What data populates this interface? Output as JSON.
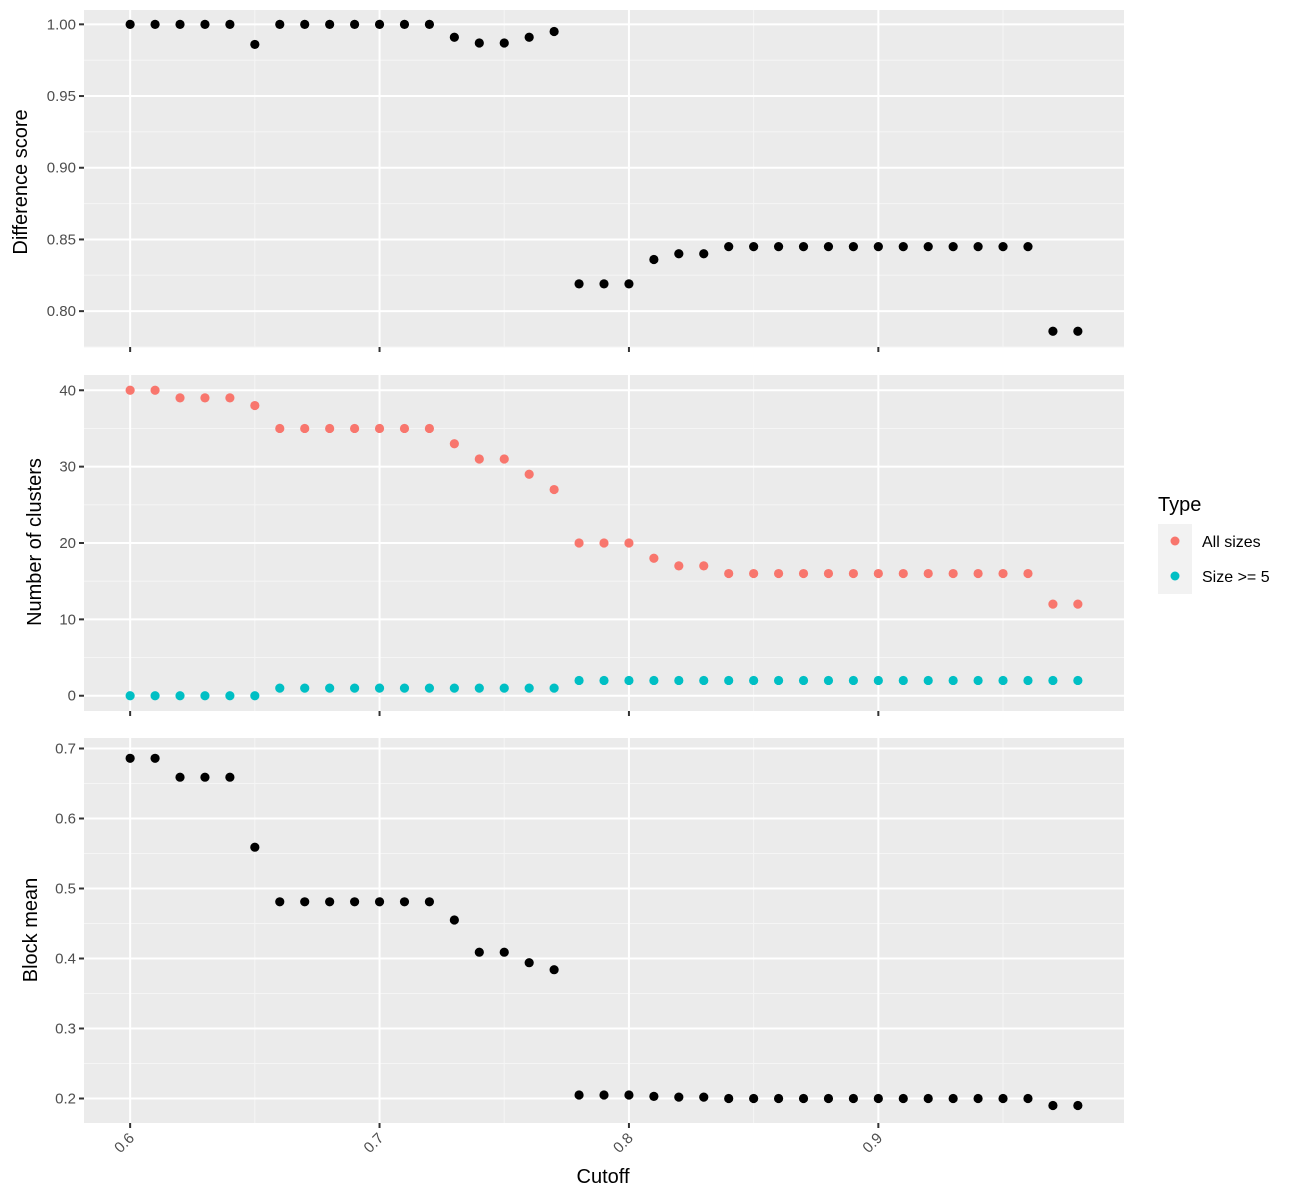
{
  "chart_data": [
    {
      "type": "scatter",
      "panel": "top",
      "ylabel": "Difference score",
      "ylim": [
        0.775,
        1.01
      ],
      "y_ticks": [
        "0.80",
        "0.85",
        "0.90",
        "0.95",
        "1.00"
      ],
      "series": [
        {
          "color": "#000000",
          "x": [
            0.6,
            0.61,
            0.62,
            0.63,
            0.64,
            0.65,
            0.66,
            0.67,
            0.68,
            0.69,
            0.7,
            0.71,
            0.72,
            0.73,
            0.74,
            0.75,
            0.76,
            0.77,
            0.78,
            0.79,
            0.8,
            0.81,
            0.82,
            0.83,
            0.84,
            0.85,
            0.86,
            0.87,
            0.88,
            0.89,
            0.9,
            0.91,
            0.92,
            0.93,
            0.94,
            0.95,
            0.96,
            0.97,
            0.98
          ],
          "y": [
            1.0,
            1.0,
            1.0,
            1.0,
            1.0,
            0.986,
            1.0,
            1.0,
            1.0,
            1.0,
            1.0,
            1.0,
            1.0,
            0.991,
            0.987,
            0.987,
            0.991,
            0.995,
            0.819,
            0.819,
            0.819,
            0.836,
            0.84,
            0.84,
            0.845,
            0.845,
            0.845,
            0.845,
            0.845,
            0.845,
            0.845,
            0.845,
            0.845,
            0.845,
            0.845,
            0.845,
            0.845,
            0.786,
            0.786
          ]
        }
      ]
    },
    {
      "type": "scatter",
      "panel": "middle",
      "ylabel": "Number of clusters",
      "ylim": [
        -2,
        42
      ],
      "y_ticks": [
        "0",
        "10",
        "20",
        "30",
        "40"
      ],
      "series": [
        {
          "name": "All sizes",
          "color": "#F8766D",
          "x": [
            0.6,
            0.61,
            0.62,
            0.63,
            0.64,
            0.65,
            0.66,
            0.67,
            0.68,
            0.69,
            0.7,
            0.71,
            0.72,
            0.73,
            0.74,
            0.75,
            0.76,
            0.77,
            0.78,
            0.79,
            0.8,
            0.81,
            0.82,
            0.83,
            0.84,
            0.85,
            0.86,
            0.87,
            0.88,
            0.89,
            0.9,
            0.91,
            0.92,
            0.93,
            0.94,
            0.95,
            0.96,
            0.97,
            0.98
          ],
          "y": [
            40,
            40,
            39,
            39,
            39,
            38,
            35,
            35,
            35,
            35,
            35,
            35,
            35,
            33,
            31,
            31,
            29,
            27,
            20,
            20,
            20,
            18,
            17,
            17,
            16,
            16,
            16,
            16,
            16,
            16,
            16,
            16,
            16,
            16,
            16,
            16,
            16,
            12,
            12
          ]
        },
        {
          "name": "Size >= 5",
          "color": "#00BFC4",
          "x": [
            0.6,
            0.61,
            0.62,
            0.63,
            0.64,
            0.65,
            0.66,
            0.67,
            0.68,
            0.69,
            0.7,
            0.71,
            0.72,
            0.73,
            0.74,
            0.75,
            0.76,
            0.77,
            0.78,
            0.79,
            0.8,
            0.81,
            0.82,
            0.83,
            0.84,
            0.85,
            0.86,
            0.87,
            0.88,
            0.89,
            0.9,
            0.91,
            0.92,
            0.93,
            0.94,
            0.95,
            0.96,
            0.97,
            0.98
          ],
          "y": [
            0,
            0,
            0,
            0,
            0,
            0,
            1,
            1,
            1,
            1,
            1,
            1,
            1,
            1,
            1,
            1,
            1,
            1,
            2,
            2,
            2,
            2,
            2,
            2,
            2,
            2,
            2,
            2,
            2,
            2,
            2,
            2,
            2,
            2,
            2,
            2,
            2,
            2,
            2
          ]
        }
      ]
    },
    {
      "type": "scatter",
      "panel": "bottom",
      "ylabel": "Block mean",
      "ylim": [
        0.165,
        0.715
      ],
      "y_ticks": [
        "0.2",
        "0.3",
        "0.4",
        "0.5",
        "0.6",
        "0.7"
      ],
      "series": [
        {
          "color": "#000000",
          "x": [
            0.6,
            0.61,
            0.62,
            0.63,
            0.64,
            0.65,
            0.66,
            0.67,
            0.68,
            0.69,
            0.7,
            0.71,
            0.72,
            0.73,
            0.74,
            0.75,
            0.76,
            0.77,
            0.78,
            0.79,
            0.8,
            0.81,
            0.82,
            0.83,
            0.84,
            0.85,
            0.86,
            0.87,
            0.88,
            0.89,
            0.9,
            0.91,
            0.92,
            0.93,
            0.94,
            0.95,
            0.96,
            0.97,
            0.98
          ],
          "y": [
            0.686,
            0.686,
            0.659,
            0.659,
            0.659,
            0.559,
            0.481,
            0.481,
            0.481,
            0.481,
            0.481,
            0.481,
            0.481,
            0.455,
            0.409,
            0.409,
            0.394,
            0.384,
            0.205,
            0.205,
            0.205,
            0.203,
            0.202,
            0.202,
            0.2,
            0.2,
            0.2,
            0.2,
            0.2,
            0.2,
            0.2,
            0.2,
            0.2,
            0.2,
            0.2,
            0.2,
            0.2,
            0.19,
            0.19
          ]
        }
      ]
    }
  ],
  "shared_x": {
    "xlabel": "Cutoff",
    "xlim": [
      0.5815,
      0.9985
    ],
    "ticks": [
      0.6,
      0.7,
      0.8,
      0.9
    ],
    "tick_labels": [
      "0.6",
      "0.7",
      "0.8",
      "0.9"
    ]
  },
  "legend": {
    "title": "Type",
    "placement": "right",
    "entries": [
      {
        "label": "All sizes",
        "color": "#F8766D"
      },
      {
        "label": "Size >= 5",
        "color": "#00BFC4"
      }
    ]
  },
  "style": {
    "panel_background": "#EBEBEB",
    "grid_major": "#FFFFFF",
    "grid_minor": "#F5F5F5",
    "tick_color": "#333333",
    "point_color_default": "#000000"
  }
}
